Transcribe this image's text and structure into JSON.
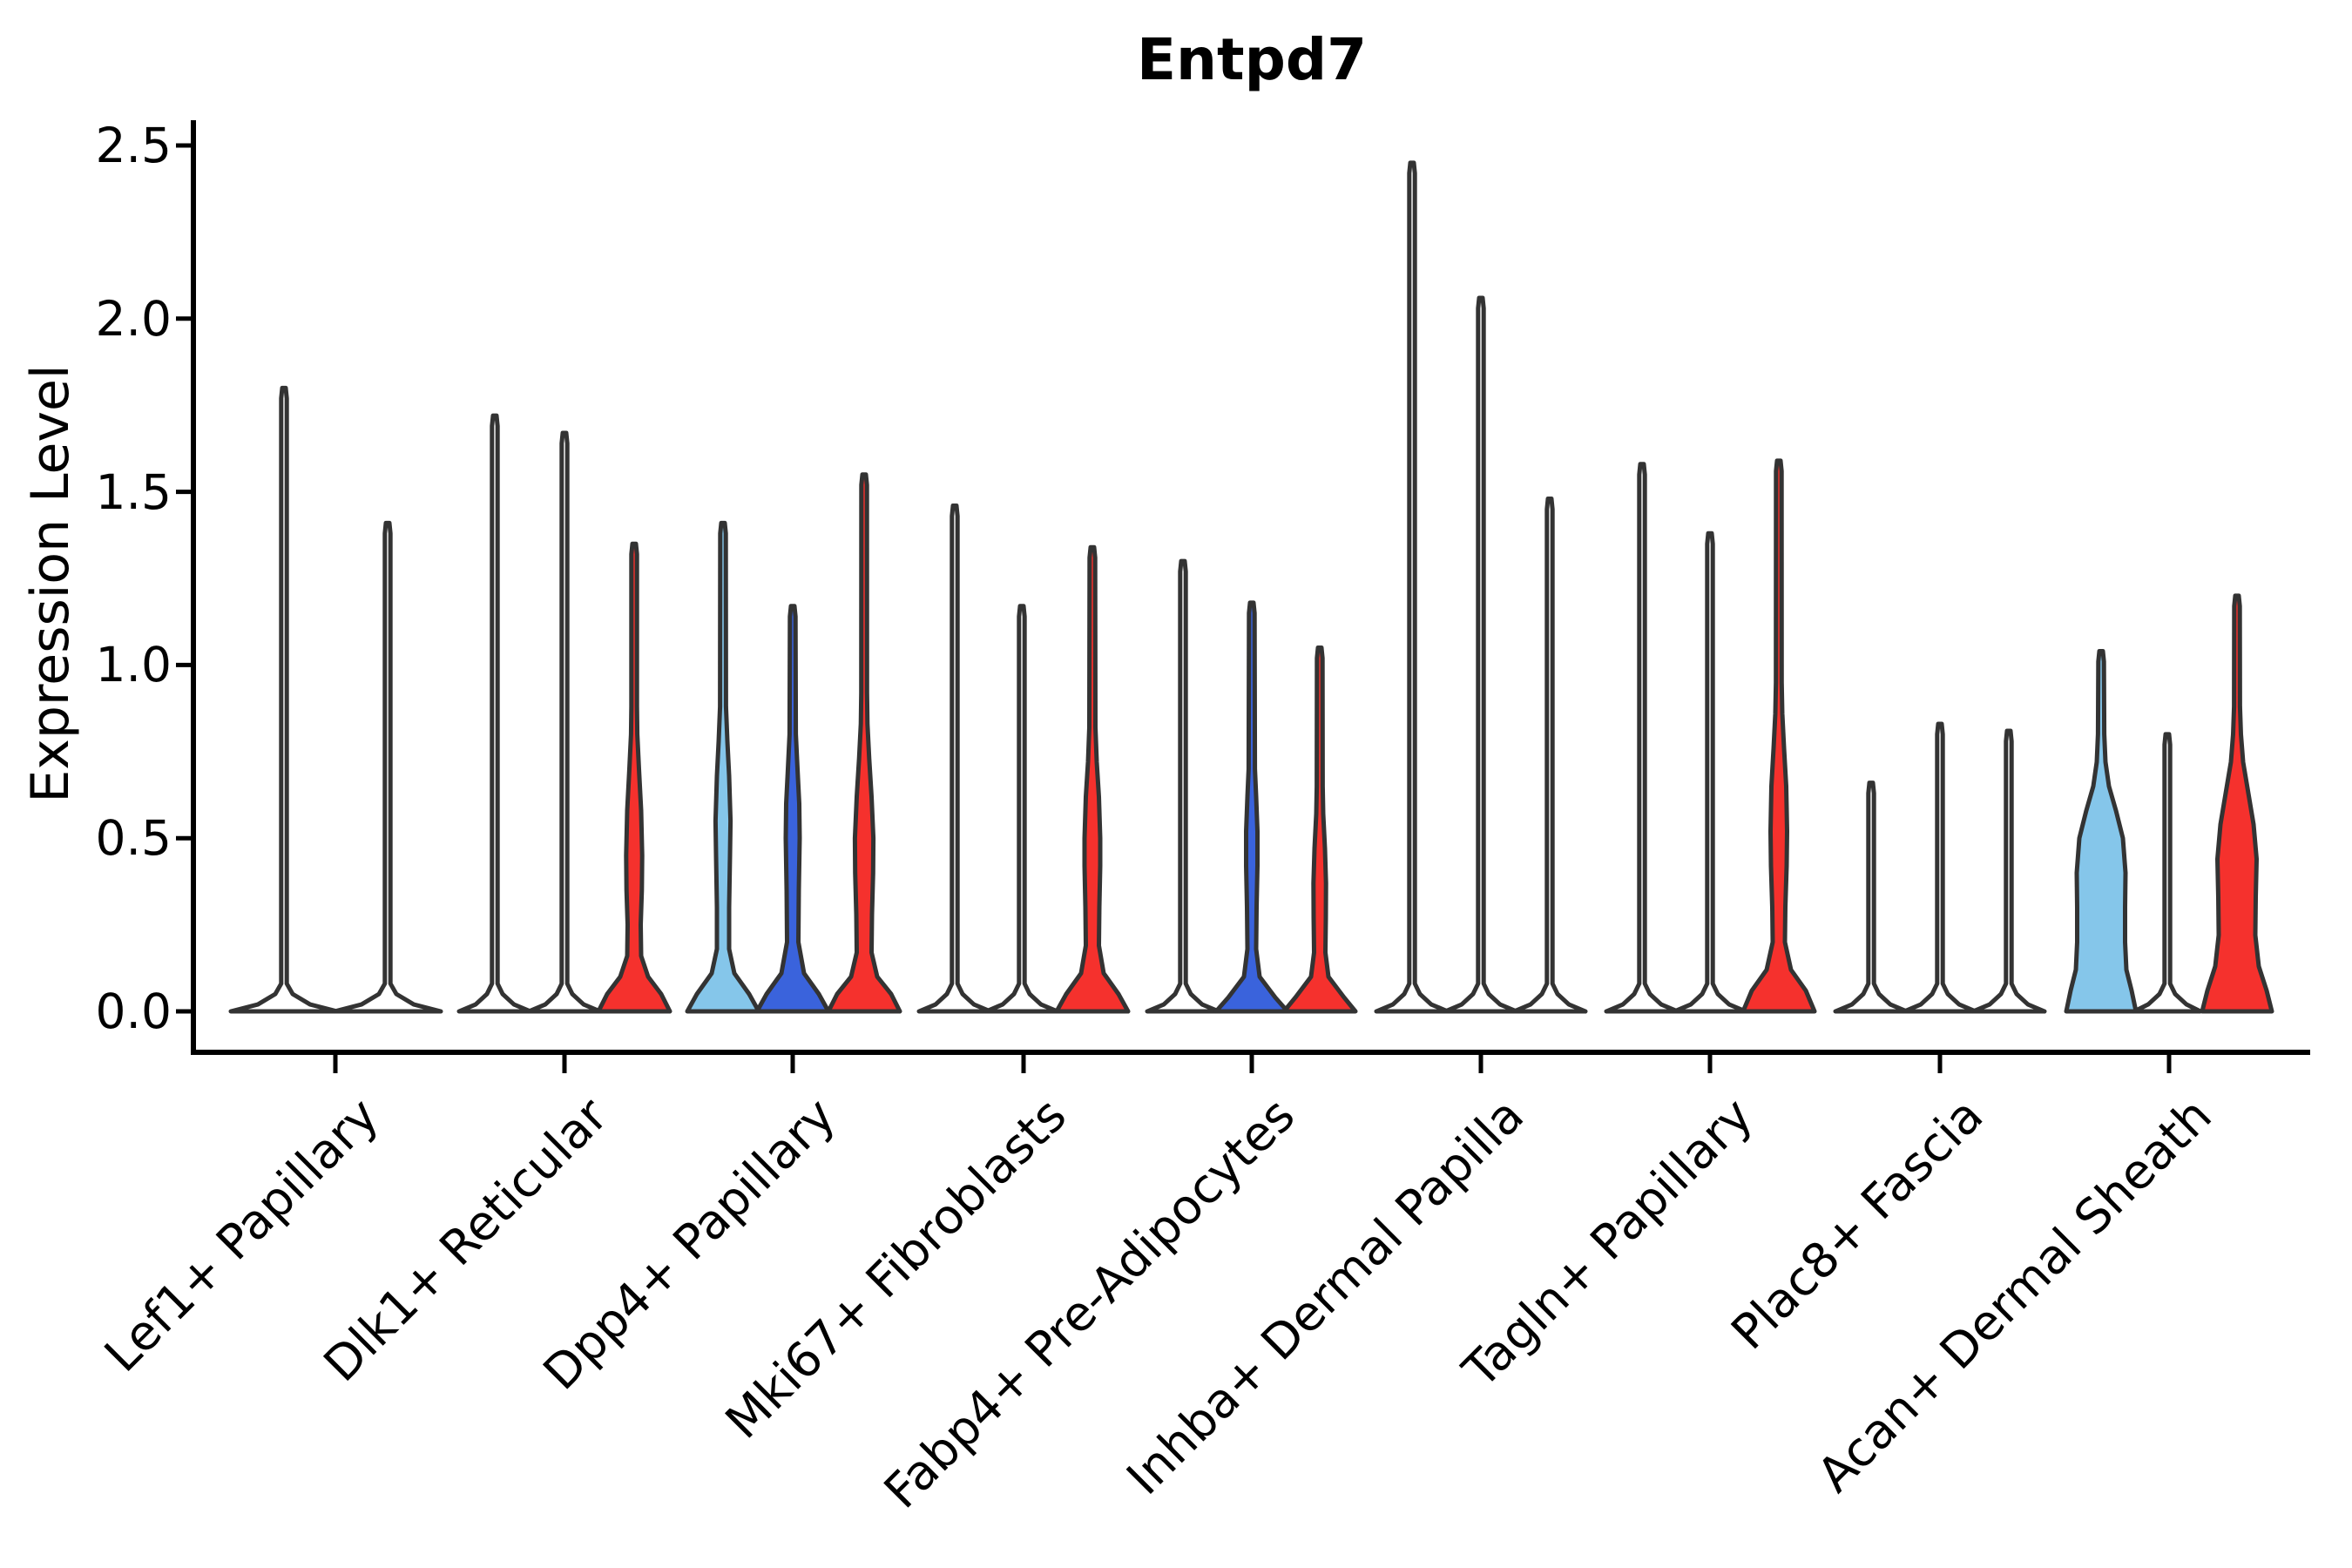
{
  "chart_data": {
    "type": "violin",
    "title": "Entpd7",
    "xlabel": "",
    "ylabel": "Expression Level",
    "ylim": [
      0,
      2.57
    ],
    "grid": false,
    "legend": "none",
    "y_ticks": [
      {
        "value": 0.0,
        "label": "0.0"
      },
      {
        "value": 0.5,
        "label": "0.5"
      },
      {
        "value": 1.0,
        "label": "1.0"
      },
      {
        "value": 1.5,
        "label": "1.5"
      },
      {
        "value": 2.0,
        "label": "2.0"
      },
      {
        "value": 2.5,
        "label": "2.5"
      }
    ],
    "colors": {
      "red": "#f5312d",
      "lightblue": "#85c6ea",
      "darkblue": "#3a63dc",
      "none": "#ffffff",
      "outline": "#333333"
    },
    "categories": [
      {
        "label": "Lef1+ Papillary",
        "tick_x": 385
      },
      {
        "label": "Dlk1+ Reticular",
        "tick_x": 648
      },
      {
        "label": "Dpp4+ Papillary",
        "tick_x": 910
      },
      {
        "label": "Mki67+ Fibroblasts",
        "tick_x": 1175
      },
      {
        "label": "Fabp4+ Pre-Adipocytes",
        "tick_x": 1437
      },
      {
        "label": "Inhba+ Dermal Papilla",
        "tick_x": 1700
      },
      {
        "label": "Tagln+ Papillary",
        "tick_x": 1963
      },
      {
        "label": "Plac8+ Fascia",
        "tick_x": 2227
      },
      {
        "label": "Acan+ Dermal Sheath",
        "tick_x": 2490
      }
    ],
    "violins": [
      {
        "category": "Lef1+ Papillary",
        "x": 326,
        "color": "none",
        "max": 1.8,
        "profile": [
          [
            0,
            61
          ],
          [
            0.02,
            30
          ],
          [
            0.05,
            10
          ],
          [
            0.08,
            3.2
          ],
          [
            1.77,
            3.2
          ],
          [
            1.8,
            2
          ]
        ]
      },
      {
        "category": "Lef1+ Papillary",
        "x": 445,
        "color": "none",
        "max": 1.41,
        "profile": [
          [
            0,
            61
          ],
          [
            0.02,
            30
          ],
          [
            0.05,
            10
          ],
          [
            0.08,
            3.2
          ],
          [
            1.38,
            3.2
          ],
          [
            1.41,
            2
          ]
        ]
      },
      {
        "category": "Dlk1+ Reticular",
        "x": 568,
        "color": "none",
        "max": 1.72,
        "profile": [
          [
            0,
            41
          ],
          [
            0.02,
            22
          ],
          [
            0.05,
            9
          ],
          [
            0.08,
            3.2
          ],
          [
            1.69,
            3.2
          ],
          [
            1.72,
            2
          ]
        ]
      },
      {
        "category": "Dlk1+ Reticular",
        "x": 648,
        "color": "none",
        "max": 1.67,
        "profile": [
          [
            0,
            41
          ],
          [
            0.02,
            22
          ],
          [
            0.05,
            9
          ],
          [
            0.08,
            3.2
          ],
          [
            1.64,
            3.2
          ],
          [
            1.67,
            2
          ]
        ]
      },
      {
        "category": "Dlk1+ Reticular",
        "x": 728,
        "color": "red",
        "max": 1.35,
        "profile": [
          [
            0,
            41
          ],
          [
            0.05,
            31
          ],
          [
            0.1,
            16
          ],
          [
            0.16,
            8
          ],
          [
            0.25,
            7.5
          ],
          [
            0.35,
            8.8
          ],
          [
            0.45,
            9.2
          ],
          [
            0.58,
            8
          ],
          [
            0.7,
            5.5
          ],
          [
            0.8,
            3.6
          ],
          [
            0.88,
            3.2
          ],
          [
            1.32,
            3.2
          ],
          [
            1.35,
            2
          ]
        ]
      },
      {
        "category": "Dpp4+ Papillary",
        "x": 830,
        "color": "lightblue",
        "max": 1.41,
        "profile": [
          [
            0,
            41
          ],
          [
            0.05,
            30
          ],
          [
            0.11,
            13
          ],
          [
            0.18,
            7
          ],
          [
            0.3,
            7
          ],
          [
            0.45,
            8
          ],
          [
            0.55,
            8.6
          ],
          [
            0.68,
            7
          ],
          [
            0.78,
            5
          ],
          [
            0.88,
            3.4
          ],
          [
            1.38,
            3.2
          ],
          [
            1.41,
            2
          ]
        ]
      },
      {
        "category": "Dpp4+ Papillary",
        "x": 910,
        "color": "darkblue",
        "max": 1.17,
        "profile": [
          [
            0,
            41
          ],
          [
            0.05,
            30
          ],
          [
            0.11,
            13
          ],
          [
            0.2,
            6.5
          ],
          [
            0.35,
            7
          ],
          [
            0.5,
            8
          ],
          [
            0.6,
            7.5
          ],
          [
            0.7,
            5.5
          ],
          [
            0.8,
            3.6
          ],
          [
            1.14,
            3.2
          ],
          [
            1.17,
            2
          ]
        ]
      },
      {
        "category": "Dpp4+ Papillary",
        "x": 992,
        "color": "red",
        "max": 1.55,
        "profile": [
          [
            0,
            41
          ],
          [
            0.05,
            31
          ],
          [
            0.1,
            15
          ],
          [
            0.17,
            8.5
          ],
          [
            0.28,
            9
          ],
          [
            0.4,
            10.3
          ],
          [
            0.5,
            10.6
          ],
          [
            0.62,
            8.5
          ],
          [
            0.73,
            5.8
          ],
          [
            0.83,
            3.8
          ],
          [
            0.92,
            3.3
          ],
          [
            1.52,
            3.2
          ],
          [
            1.55,
            2
          ]
        ]
      },
      {
        "category": "Mki67+ Fibroblasts",
        "x": 1096,
        "color": "none",
        "max": 1.46,
        "profile": [
          [
            0,
            41
          ],
          [
            0.02,
            22
          ],
          [
            0.05,
            9
          ],
          [
            0.08,
            3.2
          ],
          [
            1.43,
            3.2
          ],
          [
            1.46,
            2
          ]
        ]
      },
      {
        "category": "Mki67+ Fibroblasts",
        "x": 1173,
        "color": "none",
        "max": 1.17,
        "profile": [
          [
            0,
            41
          ],
          [
            0.02,
            22
          ],
          [
            0.05,
            9
          ],
          [
            0.08,
            3.2
          ],
          [
            1.14,
            3.2
          ],
          [
            1.17,
            2
          ]
        ]
      },
      {
        "category": "Mki67+ Fibroblasts",
        "x": 1254,
        "color": "red",
        "max": 1.34,
        "profile": [
          [
            0,
            41
          ],
          [
            0.05,
            30
          ],
          [
            0.11,
            13
          ],
          [
            0.19,
            7.5
          ],
          [
            0.3,
            8
          ],
          [
            0.42,
            9
          ],
          [
            0.5,
            9
          ],
          [
            0.62,
            7.5
          ],
          [
            0.72,
            5
          ],
          [
            0.82,
            3.5
          ],
          [
            1.31,
            3.2
          ],
          [
            1.34,
            2
          ]
        ]
      },
      {
        "category": "Fabp4+ Pre-Adipocytes",
        "x": 1358,
        "color": "none",
        "max": 1.3,
        "profile": [
          [
            0,
            41
          ],
          [
            0.02,
            22
          ],
          [
            0.05,
            9
          ],
          [
            0.08,
            3.2
          ],
          [
            1.27,
            3.2
          ],
          [
            1.3,
            2
          ]
        ]
      },
      {
        "category": "Fabp4+ Pre-Adipocytes",
        "x": 1437,
        "color": "darkblue",
        "max": 1.18,
        "profile": [
          [
            0,
            41
          ],
          [
            0.04,
            27
          ],
          [
            0.1,
            9
          ],
          [
            0.18,
            5
          ],
          [
            0.3,
            5.5
          ],
          [
            0.42,
            6.5
          ],
          [
            0.52,
            6.5
          ],
          [
            0.62,
            5
          ],
          [
            0.7,
            3.6
          ],
          [
            1.15,
            3.2
          ],
          [
            1.18,
            2
          ]
        ]
      },
      {
        "category": "Fabp4+ Pre-Adipocytes",
        "x": 1515,
        "color": "red",
        "max": 1.05,
        "profile": [
          [
            0,
            41
          ],
          [
            0.04,
            28
          ],
          [
            0.1,
            10
          ],
          [
            0.17,
            6.5
          ],
          [
            0.27,
            7
          ],
          [
            0.37,
            7.2
          ],
          [
            0.47,
            6
          ],
          [
            0.57,
            4
          ],
          [
            0.65,
            3.4
          ],
          [
            1.02,
            3.2
          ],
          [
            1.05,
            2
          ]
        ]
      },
      {
        "category": "Inhba+ Dermal Papilla",
        "x": 1621,
        "color": "none",
        "max": 2.45,
        "profile": [
          [
            0,
            41
          ],
          [
            0.02,
            22
          ],
          [
            0.05,
            9
          ],
          [
            0.08,
            3.2
          ],
          [
            2.42,
            3.2
          ],
          [
            2.45,
            2
          ]
        ]
      },
      {
        "category": "Inhba+ Dermal Papilla",
        "x": 1700,
        "color": "none",
        "max": 2.06,
        "profile": [
          [
            0,
            41
          ],
          [
            0.02,
            22
          ],
          [
            0.05,
            9
          ],
          [
            0.08,
            3.2
          ],
          [
            2.03,
            3.2
          ],
          [
            2.06,
            2
          ]
        ]
      },
      {
        "category": "Inhba+ Dermal Papilla",
        "x": 1779,
        "color": "none",
        "max": 1.48,
        "profile": [
          [
            0,
            41
          ],
          [
            0.02,
            22
          ],
          [
            0.05,
            9
          ],
          [
            0.08,
            3.2
          ],
          [
            1.45,
            3.2
          ],
          [
            1.48,
            2
          ]
        ]
      },
      {
        "category": "Tagln+ Papillary",
        "x": 1885,
        "color": "none",
        "max": 1.58,
        "profile": [
          [
            0,
            41
          ],
          [
            0.02,
            22
          ],
          [
            0.05,
            9
          ],
          [
            0.08,
            3.2
          ],
          [
            1.55,
            3.2
          ],
          [
            1.58,
            2
          ]
        ]
      },
      {
        "category": "Tagln+ Papillary",
        "x": 1963,
        "color": "none",
        "max": 1.38,
        "profile": [
          [
            0,
            41
          ],
          [
            0.02,
            22
          ],
          [
            0.05,
            9
          ],
          [
            0.08,
            3.2
          ],
          [
            1.35,
            3.2
          ],
          [
            1.38,
            2
          ]
        ]
      },
      {
        "category": "Tagln+ Papillary",
        "x": 2042,
        "color": "red",
        "max": 1.59,
        "profile": [
          [
            0,
            41
          ],
          [
            0.06,
            31
          ],
          [
            0.12,
            14
          ],
          [
            0.2,
            7
          ],
          [
            0.3,
            7.5
          ],
          [
            0.42,
            9
          ],
          [
            0.52,
            9.5
          ],
          [
            0.65,
            8.5
          ],
          [
            0.76,
            6
          ],
          [
            0.86,
            4
          ],
          [
            0.95,
            3.3
          ],
          [
            1.56,
            3.2
          ],
          [
            1.59,
            2
          ]
        ]
      },
      {
        "category": "Plac8+ Fascia",
        "x": 2148,
        "color": "none",
        "max": 0.66,
        "profile": [
          [
            0,
            41
          ],
          [
            0.02,
            22
          ],
          [
            0.05,
            9
          ],
          [
            0.08,
            3.2
          ],
          [
            0.63,
            3.2
          ],
          [
            0.66,
            2
          ]
        ]
      },
      {
        "category": "Plac8+ Fascia",
        "x": 2227,
        "color": "none",
        "max": 0.83,
        "profile": [
          [
            0,
            41
          ],
          [
            0.02,
            22
          ],
          [
            0.05,
            9
          ],
          [
            0.08,
            3.2
          ],
          [
            0.8,
            3.2
          ],
          [
            0.83,
            2
          ]
        ]
      },
      {
        "category": "Plac8+ Fascia",
        "x": 2306,
        "color": "none",
        "max": 0.81,
        "profile": [
          [
            0,
            41
          ],
          [
            0.02,
            22
          ],
          [
            0.05,
            9
          ],
          [
            0.08,
            3.2
          ],
          [
            0.78,
            3.2
          ],
          [
            0.81,
            2
          ]
        ]
      },
      {
        "category": "Acan+ Dermal Sheath",
        "x": 2412,
        "color": "lightblue",
        "max": 1.04,
        "profile": [
          [
            0,
            40
          ],
          [
            0.06,
            35
          ],
          [
            0.12,
            29
          ],
          [
            0.2,
            27.5
          ],
          [
            0.3,
            27.5
          ],
          [
            0.4,
            28
          ],
          [
            0.5,
            25
          ],
          [
            0.58,
            17
          ],
          [
            0.65,
            9
          ],
          [
            0.72,
            5
          ],
          [
            0.8,
            3.6
          ],
          [
            1.01,
            3.2
          ],
          [
            1.04,
            2
          ]
        ]
      },
      {
        "category": "Acan+ Dermal Sheath",
        "x": 2488,
        "color": "none",
        "max": 0.8,
        "profile": [
          [
            0,
            38
          ],
          [
            0.02,
            22
          ],
          [
            0.05,
            9
          ],
          [
            0.08,
            3.2
          ],
          [
            0.77,
            3.2
          ],
          [
            0.8,
            2
          ]
        ]
      },
      {
        "category": "Acan+ Dermal Sheath",
        "x": 2568,
        "color": "red",
        "max": 1.2,
        "profile": [
          [
            0,
            40
          ],
          [
            0.06,
            34
          ],
          [
            0.13,
            25
          ],
          [
            0.22,
            21
          ],
          [
            0.33,
            21.5
          ],
          [
            0.44,
            22.5
          ],
          [
            0.54,
            19
          ],
          [
            0.63,
            13
          ],
          [
            0.72,
            7
          ],
          [
            0.8,
            4.5
          ],
          [
            0.88,
            3.4
          ],
          [
            1.17,
            3.2
          ],
          [
            1.2,
            2
          ]
        ]
      }
    ]
  }
}
